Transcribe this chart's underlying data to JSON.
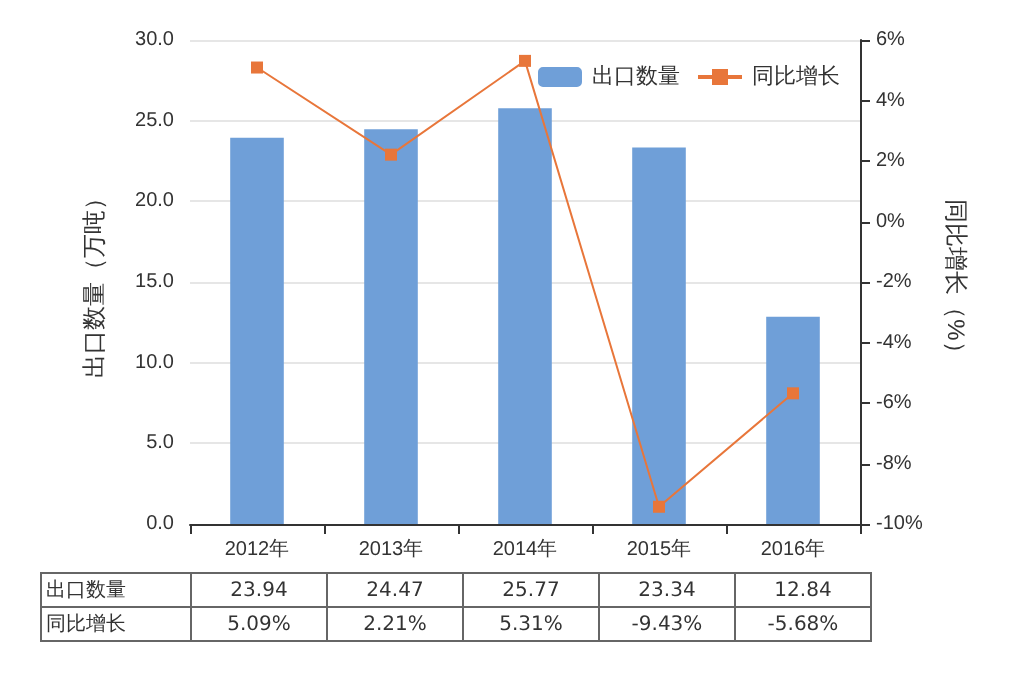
{
  "chart_data": {
    "type": "bar",
    "ylabel": "出口数量（万吨）",
    "y2label": "同比增长（%）",
    "categories": [
      "2012年",
      "2013年",
      "2014年",
      "2015年",
      "2016年"
    ],
    "series": [
      {
        "name": "出口数量",
        "color": "#6f9fd8",
        "values": [
          23.94,
          24.47,
          25.77,
          23.34,
          12.84
        ],
        "value_labels": [
          "23.94",
          "24.47",
          "25.77",
          "23.34",
          "12.84"
        ]
      },
      {
        "name": "同比增长",
        "type": "line",
        "axis": "y2",
        "color": "#e8763a",
        "marker": "square",
        "values": [
          5.09,
          2.21,
          5.31,
          -9.43,
          -5.68
        ],
        "value_labels": [
          "5.09%",
          "2.21%",
          "5.31%",
          "-9.43%",
          "-5.68%"
        ]
      }
    ],
    "ylim": [
      0,
      30
    ],
    "yticks": [
      {
        "value": 0,
        "label": "0.0"
      },
      {
        "value": 5,
        "label": "5.0"
      },
      {
        "value": 10,
        "label": "10.0"
      },
      {
        "value": 15,
        "label": "15.0"
      },
      {
        "value": 20,
        "label": "20.0"
      },
      {
        "value": 25,
        "label": "25.0"
      },
      {
        "value": 30,
        "label": "30.0"
      }
    ],
    "y2lim": [
      -10,
      6
    ],
    "y2ticks": [
      {
        "value": -10,
        "label": "-10%"
      },
      {
        "value": -8,
        "label": "-8%"
      },
      {
        "value": -6,
        "label": "-6%"
      },
      {
        "value": -4,
        "label": "-4%"
      },
      {
        "value": -2,
        "label": "-2%"
      },
      {
        "value": 0,
        "label": "0%"
      },
      {
        "value": 2,
        "label": "2%"
      },
      {
        "value": 4,
        "label": "4%"
      },
      {
        "value": 6,
        "label": "6%"
      }
    ],
    "grid": "y",
    "legend": "top right"
  }
}
